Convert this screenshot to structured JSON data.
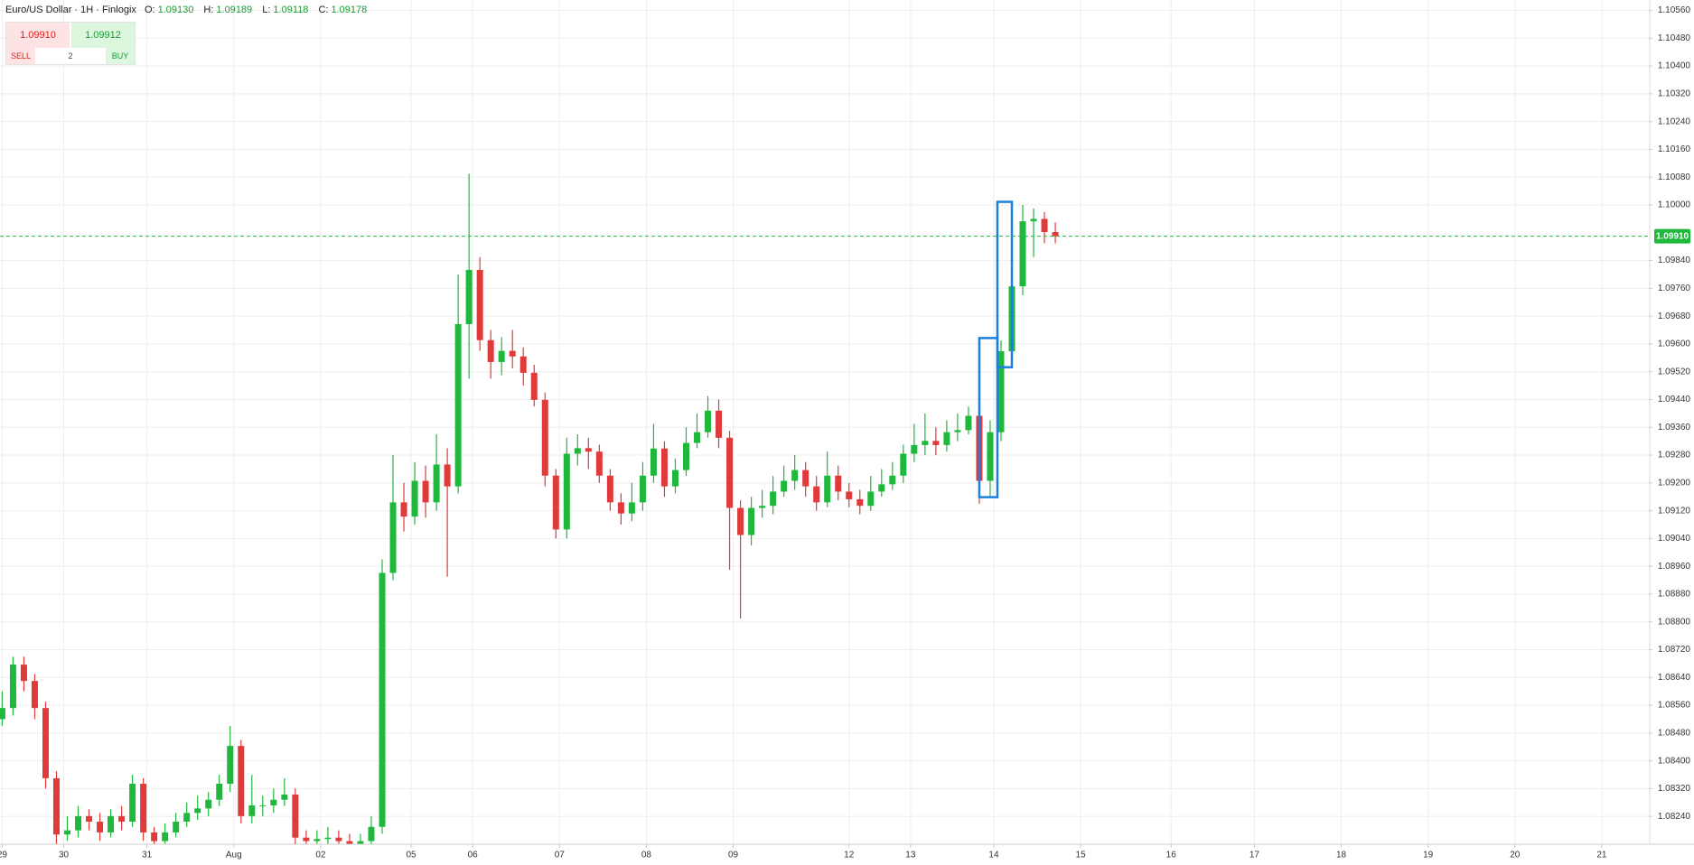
{
  "header": {
    "symbol": "Euro/US Dollar",
    "interval": "1H",
    "source": "Finlogix",
    "ohlc": [
      {
        "label": "O:",
        "value": "1.09130"
      },
      {
        "label": "H:",
        "value": "1.09189"
      },
      {
        "label": "L:",
        "value": "1.09118"
      },
      {
        "label": "C:",
        "value": "1.09178"
      }
    ]
  },
  "trade_widget": {
    "sell_price": "1.09910",
    "buy_price": "1.09912",
    "sell_label": "SELL",
    "buy_label": "BUY",
    "quantity": "2"
  },
  "chart_data": {
    "type": "candlestick",
    "up_color": "#1fb83c",
    "down_color": "#e03a3a",
    "grid": true,
    "xlim": [
      -0.6,
      455
    ],
    "ylim": [
      1.0816,
      1.1059
    ],
    "xticks": [
      {
        "value": 0,
        "label": "29"
      },
      {
        "value": 17,
        "label": "30"
      },
      {
        "value": 40,
        "label": "31"
      },
      {
        "value": 64,
        "label": "Aug"
      },
      {
        "value": 88,
        "label": "02"
      },
      {
        "value": 113,
        "label": "05"
      },
      {
        "value": 130,
        "label": "06"
      },
      {
        "value": 154,
        "label": "07"
      },
      {
        "value": 178,
        "label": "08"
      },
      {
        "value": 202,
        "label": "09"
      },
      {
        "value": 234,
        "label": "12"
      },
      {
        "value": 251,
        "label": "13"
      },
      {
        "value": 274,
        "label": "14"
      },
      {
        "value": 298,
        "label": "15"
      },
      {
        "value": 323,
        "label": "16"
      },
      {
        "value": 346,
        "label": "17"
      },
      {
        "value": 370,
        "label": "18"
      },
      {
        "value": 394,
        "label": "19"
      },
      {
        "value": 418,
        "label": "20"
      },
      {
        "value": 442,
        "label": "21"
      }
    ],
    "yticks": [
      {
        "value": 1.1056,
        "label": "1.10560"
      },
      {
        "value": 1.1048,
        "label": "1.10480"
      },
      {
        "value": 1.104,
        "label": "1.10400"
      },
      {
        "value": 1.1032,
        "label": "1.10320"
      },
      {
        "value": 1.1024,
        "label": "1.10240"
      },
      {
        "value": 1.1016,
        "label": "1.10160"
      },
      {
        "value": 1.1008,
        "label": "1.10080"
      },
      {
        "value": 1.1,
        "label": "1.10000"
      },
      {
        "value": 1.0984,
        "label": "1.09840"
      },
      {
        "value": 1.0976,
        "label": "1.09760"
      },
      {
        "value": 1.0968,
        "label": "1.09680"
      },
      {
        "value": 1.096,
        "label": "1.09600"
      },
      {
        "value": 1.0952,
        "label": "1.09520"
      },
      {
        "value": 1.0944,
        "label": "1.09440"
      },
      {
        "value": 1.0936,
        "label": "1.09360"
      },
      {
        "value": 1.0928,
        "label": "1.09280"
      },
      {
        "value": 1.092,
        "label": "1.09200"
      },
      {
        "value": 1.0912,
        "label": "1.09120"
      },
      {
        "value": 1.0904,
        "label": "1.09040"
      },
      {
        "value": 1.0896,
        "label": "1.08960"
      },
      {
        "value": 1.0888,
        "label": "1.08880"
      },
      {
        "value": 1.088,
        "label": "1.08800"
      },
      {
        "value": 1.0872,
        "label": "1.08720"
      },
      {
        "value": 1.0864,
        "label": "1.08640"
      },
      {
        "value": 1.0856,
        "label": "1.08560"
      },
      {
        "value": 1.0848,
        "label": "1.08480"
      },
      {
        "value": 1.084,
        "label": "1.08400"
      },
      {
        "value": 1.0832,
        "label": "1.08320"
      },
      {
        "value": 1.0824,
        "label": "1.08240"
      }
    ],
    "last_price": {
      "value": 1.0991,
      "label": "1.09910",
      "color": "#1fb83c"
    },
    "highlight_boxes": [
      {
        "x0": 270,
        "x1": 275,
        "y0": 1.09159,
        "y1": 1.09617,
        "color": "#1a7fe0"
      },
      {
        "x0": 275,
        "x1": 279,
        "y0": 1.09533,
        "y1": 1.10009,
        "color": "#1a7fe0"
      }
    ],
    "x": [
      0,
      3,
      6,
      9,
      12,
      15,
      18,
      21,
      24,
      27,
      30,
      33,
      36,
      39,
      42,
      45,
      48,
      51,
      54,
      57,
      60,
      63,
      66,
      69,
      72,
      75,
      78,
      81,
      84,
      87,
      90,
      93,
      96,
      99,
      102,
      105,
      108,
      111,
      114,
      117,
      120,
      123,
      126,
      129,
      132,
      135,
      138,
      141,
      144,
      147,
      150,
      153,
      156,
      159,
      162,
      165,
      168,
      171,
      174,
      177,
      180,
      183,
      186,
      189,
      192,
      195,
      198,
      201,
      204,
      207,
      210,
      213,
      216,
      219,
      222,
      225,
      228,
      231,
      234,
      237,
      240,
      243,
      246,
      249,
      252,
      255,
      258,
      261,
      264,
      267,
      270,
      273,
      276,
      279,
      282,
      285,
      288,
      291
    ],
    "open": [
      1.0852,
      1.08552,
      1.08677,
      1.0863,
      1.08552,
      1.0835,
      1.08188,
      1.082,
      1.08241,
      1.08225,
      1.08194,
      1.08241,
      1.08225,
      1.08334,
      1.08194,
      1.08169,
      1.08194,
      1.08225,
      1.0825,
      1.08263,
      1.08288,
      1.08334,
      1.08443,
      1.08241,
      1.08272,
      1.08272,
      1.08288,
      1.08303,
      1.08179,
      1.08169,
      1.08175,
      1.08179,
      1.08169,
      1.0816,
      1.08169,
      1.0821,
      1.08941,
      1.09144,
      1.09103,
      1.09206,
      1.09144,
      1.09253,
      1.0919,
      1.09657,
      1.09813,
      1.09611,
      1.09548,
      1.0958,
      1.09564,
      1.09517,
      1.09439,
      1.09221,
      1.09066,
      1.09284,
      1.093,
      1.0929,
      1.09221,
      1.09144,
      1.09112,
      1.09144,
      1.09221,
      1.09299,
      1.0919,
      1.09237,
      1.09315,
      1.09346,
      1.09408,
      1.0933,
      1.09128,
      1.0905,
      1.09128,
      1.09134,
      1.09175,
      1.09206,
      1.09237,
      1.0919,
      1.09144,
      1.09221,
      1.09175,
      1.09153,
      1.09134,
      1.09175,
      1.09196,
      1.09221,
      1.09284,
      1.09309,
      1.09321,
      1.09309,
      1.09346,
      1.09352,
      1.09393,
      1.09206,
      1.09346,
      1.09579,
      1.09766,
      1.09953,
      1.0996,
      1.09922
    ],
    "high": [
      1.086,
      1.087,
      1.087,
      1.0865,
      1.0857,
      1.0837,
      1.0824,
      1.0827,
      1.0826,
      1.0825,
      1.0826,
      1.0827,
      1.0836,
      1.0835,
      1.0821,
      1.0822,
      1.0825,
      1.0828,
      1.083,
      1.0831,
      1.0836,
      1.085,
      1.0846,
      1.0836,
      1.083,
      1.0832,
      1.0835,
      1.0832,
      1.082,
      1.082,
      1.0821,
      1.082,
      1.0819,
      1.0819,
      1.0824,
      1.0898,
      1.0928,
      1.092,
      1.0926,
      1.0925,
      1.0934,
      1.093,
      1.098,
      1.1009,
      1.0985,
      1.0964,
      1.0962,
      1.0964,
      1.0959,
      1.0954,
      1.0946,
      1.0924,
      1.0933,
      1.0934,
      1.0933,
      1.0931,
      1.0924,
      1.0917,
      1.092,
      1.0926,
      1.0937,
      1.0932,
      1.0927,
      1.0936,
      1.094,
      1.0945,
      1.0944,
      1.0935,
      1.0915,
      1.0916,
      1.0918,
      1.0922,
      1.0925,
      1.0928,
      1.0926,
      1.0922,
      1.0929,
      1.0925,
      1.092,
      1.0918,
      1.0922,
      1.0924,
      1.0926,
      1.0931,
      1.0937,
      1.094,
      1.0936,
      1.0938,
      1.094,
      1.0942,
      1.0941,
      1.0938,
      1.0961,
      1.098,
      1.1,
      1.0999,
      1.0998,
      1.0995
    ],
    "low": [
      1.085,
      1.0853,
      1.086,
      1.0852,
      1.0832,
      1.0816,
      1.0817,
      1.0818,
      1.082,
      1.0817,
      1.0818,
      1.082,
      1.0821,
      1.0817,
      1.0815,
      1.0815,
      1.0818,
      1.0821,
      1.0823,
      1.0824,
      1.0827,
      1.0831,
      1.0822,
      1.0822,
      1.0824,
      1.0825,
      1.0827,
      1.0815,
      1.0814,
      1.0814,
      1.0815,
      1.0814,
      1.0813,
      1.0813,
      1.0815,
      1.0819,
      1.0892,
      1.0906,
      1.0908,
      1.091,
      1.0912,
      1.0893,
      1.0917,
      1.095,
      1.0958,
      1.095,
      1.0951,
      1.0953,
      1.0948,
      1.0942,
      1.0919,
      1.0904,
      1.0904,
      1.0925,
      1.0924,
      1.092,
      1.0912,
      1.0908,
      1.0909,
      1.0912,
      1.092,
      1.0916,
      1.0917,
      1.0922,
      1.093,
      1.0933,
      1.093,
      1.0895,
      1.0881,
      1.0902,
      1.091,
      1.0911,
      1.0916,
      1.0918,
      1.0916,
      1.0912,
      1.0913,
      1.0915,
      1.0913,
      1.0911,
      1.0912,
      1.0916,
      1.0918,
      1.092,
      1.0926,
      1.0928,
      1.0928,
      1.0929,
      1.0932,
      1.0934,
      1.0914,
      1.0916,
      1.0932,
      1.0954,
      1.0974,
      1.0985,
      1.0989,
      1.0989
    ],
    "close": [
      1.08552,
      1.08677,
      1.0863,
      1.08552,
      1.0835,
      1.08188,
      1.082,
      1.08241,
      1.08225,
      1.08194,
      1.08241,
      1.08225,
      1.08334,
      1.08194,
      1.08169,
      1.08194,
      1.08225,
      1.0825,
      1.08263,
      1.08288,
      1.08334,
      1.08443,
      1.08241,
      1.08272,
      1.08272,
      1.08288,
      1.08303,
      1.08179,
      1.08169,
      1.08175,
      1.08179,
      1.08169,
      1.0816,
      1.08169,
      1.0821,
      1.08941,
      1.09144,
      1.09103,
      1.09206,
      1.09144,
      1.09253,
      1.0919,
      1.09657,
      1.09813,
      1.09611,
      1.09548,
      1.0958,
      1.09564,
      1.09517,
      1.09439,
      1.09221,
      1.09066,
      1.09284,
      1.093,
      1.0929,
      1.09221,
      1.09144,
      1.09112,
      1.09144,
      1.09221,
      1.09299,
      1.0919,
      1.09237,
      1.09315,
      1.09346,
      1.09408,
      1.0933,
      1.09128,
      1.0905,
      1.09128,
      1.09134,
      1.09175,
      1.09206,
      1.09237,
      1.0919,
      1.09144,
      1.09221,
      1.09175,
      1.09153,
      1.09134,
      1.09175,
      1.09196,
      1.09221,
      1.09284,
      1.09309,
      1.09321,
      1.09309,
      1.09346,
      1.09352,
      1.09393,
      1.09206,
      1.09346,
      1.09579,
      1.09766,
      1.09953,
      1.0996,
      1.09922,
      1.0991
    ]
  }
}
